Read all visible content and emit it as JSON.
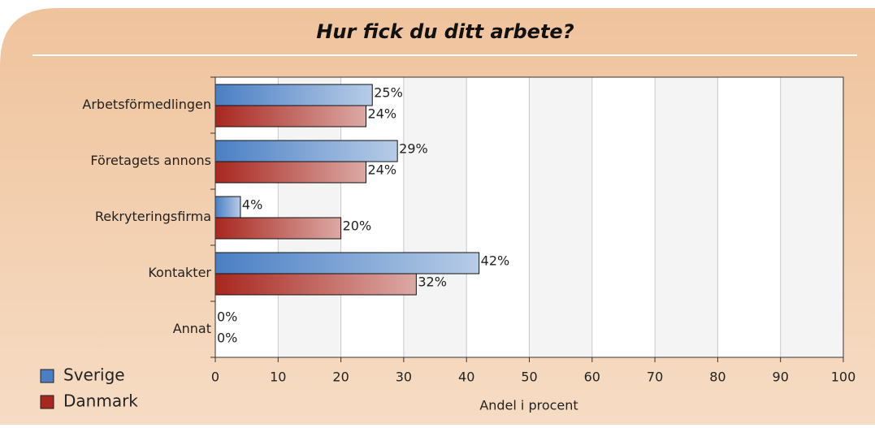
{
  "chart_data": {
    "type": "barh",
    "title": "Hur fick du ditt arbete?",
    "xlabel": "Andel i procent",
    "categories": [
      "Arbetsförmedlingen",
      "Företagets annons",
      "Rekryteringsfirma",
      "Kontakter",
      "Annat"
    ],
    "series": [
      {
        "name": "Sverige",
        "color": "#4a7fc4",
        "values": [
          25,
          29,
          4,
          42,
          0
        ],
        "value_labels": [
          "25%",
          "29%",
          "4%",
          "42%",
          "0%"
        ]
      },
      {
        "name": "Danmark",
        "color": "#a8271f",
        "values": [
          24,
          24,
          20,
          32,
          0
        ],
        "value_labels": [
          "24%",
          "24%",
          "20%",
          "32%",
          "0%"
        ]
      }
    ],
    "xlim": [
      0,
      100
    ],
    "xticks": [
      0,
      10,
      20,
      30,
      40,
      50,
      60,
      70,
      80,
      90,
      100
    ],
    "grid": true,
    "legend": "lower left"
  }
}
